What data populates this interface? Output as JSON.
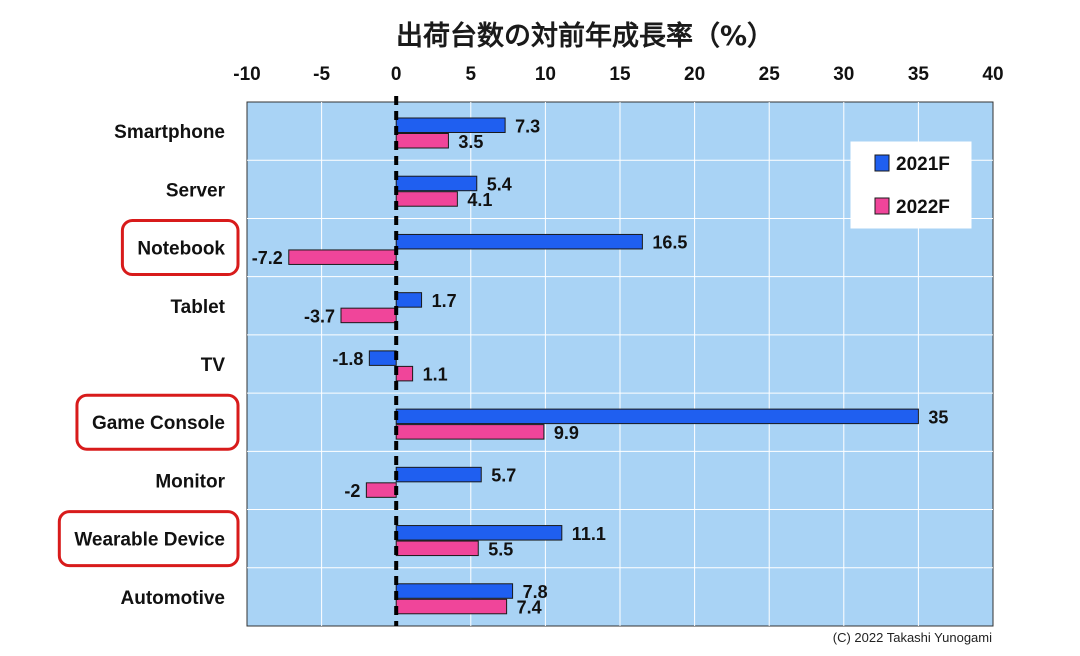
{
  "chart_data": {
    "type": "bar",
    "orientation": "horizontal",
    "title": "出荷台数の対前年成長率（%）",
    "categories": [
      "Smartphone",
      "Server",
      "Notebook",
      "Tablet",
      "TV",
      "Game Console",
      "Monitor",
      "Wearable Device",
      "Automotive"
    ],
    "highlighted_categories": [
      "Notebook",
      "Game Console",
      "Wearable Device"
    ],
    "series": [
      {
        "name": "2021F",
        "color": "#1f5ff0",
        "values": [
          7.3,
          5.4,
          16.5,
          1.7,
          -1.8,
          35,
          5.7,
          11.1,
          7.8
        ]
      },
      {
        "name": "2022F",
        "color": "#f0459a",
        "values": [
          3.5,
          4.1,
          -7.2,
          -3.7,
          1.1,
          9.9,
          -2,
          5.5,
          7.4
        ]
      }
    ],
    "xlim": [
      -10,
      40
    ],
    "xticks": [
      "-10",
      "-5",
      "0",
      "5",
      "10",
      "15",
      "20",
      "25",
      "30",
      "35",
      "40"
    ],
    "xaxis_position": "top",
    "grid": true,
    "legend_position": "top-right",
    "plot_background": "#a9d3f5",
    "highlight_color": "#d81b1b"
  },
  "credit": "(C) 2022 Takashi Yunogami"
}
